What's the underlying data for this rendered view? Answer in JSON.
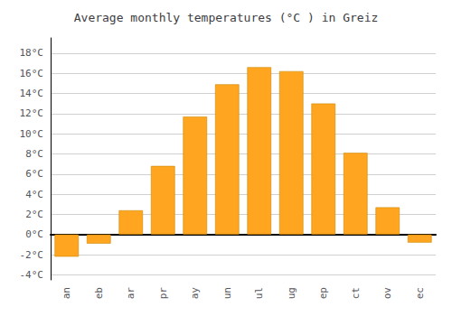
{
  "chart_data": {
    "type": "bar",
    "title": "Average monthly temperatures (°C ) in Greiz",
    "categories": [
      "an",
      "eb",
      "ar",
      "pr",
      "ay",
      "un",
      "ul",
      "ug",
      "ep",
      "ct",
      "ov",
      "ec"
    ],
    "values": [
      -2.2,
      -0.9,
      2.4,
      6.8,
      11.7,
      14.9,
      16.6,
      16.2,
      13.0,
      8.1,
      2.7,
      -0.8
    ],
    "color": "#FFA520",
    "ylim": [
      -4.5,
      19.5
    ],
    "yticks": [
      {
        "value": -4,
        "label": "-4°C"
      },
      {
        "value": -2,
        "label": "-2°C"
      },
      {
        "value": 0,
        "label": "0°C"
      },
      {
        "value": 2,
        "label": "2°C"
      },
      {
        "value": 4,
        "label": "4°C"
      },
      {
        "value": 6,
        "label": "6°C"
      },
      {
        "value": 8,
        "label": "8°C"
      },
      {
        "value": 10,
        "label": "10°C"
      },
      {
        "value": 12,
        "label": "12°C"
      },
      {
        "value": 14,
        "label": "14°C"
      },
      {
        "value": 16,
        "label": "16°C"
      },
      {
        "value": 18,
        "label": "18°C"
      }
    ],
    "grid": true
  }
}
